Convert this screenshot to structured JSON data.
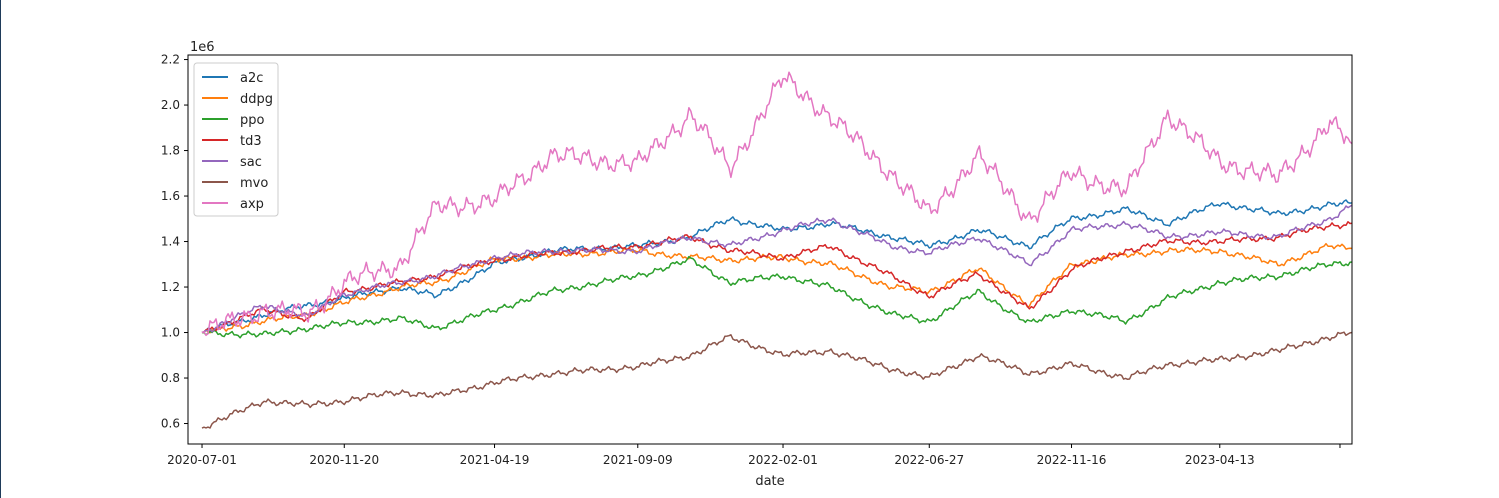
{
  "chart_data": {
    "type": "line",
    "title": "",
    "xlabel": "date",
    "ylabel": "",
    "y_offset_text": "1e6",
    "x_tick_labels": [
      "2020-07-01",
      "2020-11-20",
      "2021-04-19",
      "2021-09-09",
      "2022-02-01",
      "2022-06-27",
      "2022-11-16",
      "2023-04-13",
      ""
    ],
    "x_ticks_days": [
      0,
      142,
      292,
      435,
      580,
      726,
      868,
      1016,
      1136
    ],
    "y_ticks": [
      0.6,
      0.8,
      1.0,
      1.2,
      1.4,
      1.6,
      1.8,
      2.0,
      2.2
    ],
    "y_tick_labels": [
      "0.6",
      "0.8",
      "1.0",
      "1.2",
      "1.4",
      "1.6",
      "1.8",
      "2.0",
      "2.2"
    ],
    "xlim": [
      "2020-06-17",
      "2023-08-23"
    ],
    "ylim": [
      0.51,
      2.22
    ],
    "grid": false,
    "legend_position": "upper left",
    "x_dates": [
      "2020-07-01",
      "2020-09-01",
      "2020-10-15",
      "2020-11-20",
      "2021-01-15",
      "2021-02-20",
      "2021-04-19",
      "2021-06-15",
      "2021-09-09",
      "2021-11-01",
      "2021-12-10",
      "2022-02-01",
      "2022-03-20",
      "2022-05-20",
      "2022-06-27",
      "2022-08-15",
      "2022-10-05",
      "2022-11-16",
      "2023-01-10",
      "2023-02-20",
      "2023-04-13",
      "2023-06-10",
      "2023-08-01",
      "2023-08-23"
    ],
    "series": [
      {
        "name": "a2c",
        "color": "#1f77b4",
        "values": [
          1.0,
          1.08,
          1.12,
          1.15,
          1.2,
          1.16,
          1.3,
          1.36,
          1.38,
          1.42,
          1.5,
          1.45,
          1.48,
          1.42,
          1.38,
          1.45,
          1.38,
          1.5,
          1.54,
          1.48,
          1.57,
          1.52,
          1.56,
          1.57
        ]
      },
      {
        "name": "ddpg",
        "color": "#ff7f0e",
        "values": [
          1.0,
          1.05,
          1.08,
          1.13,
          1.2,
          1.22,
          1.32,
          1.34,
          1.36,
          1.33,
          1.32,
          1.33,
          1.3,
          1.2,
          1.18,
          1.28,
          1.12,
          1.3,
          1.34,
          1.36,
          1.36,
          1.3,
          1.38,
          1.37
        ]
      },
      {
        "name": "ppo",
        "color": "#2ca02c",
        "values": [
          1.0,
          0.99,
          1.02,
          1.04,
          1.06,
          1.02,
          1.1,
          1.18,
          1.25,
          1.32,
          1.22,
          1.25,
          1.2,
          1.08,
          1.05,
          1.18,
          1.04,
          1.1,
          1.05,
          1.15,
          1.22,
          1.25,
          1.3,
          1.31
        ]
      },
      {
        "name": "td3",
        "color": "#d62728",
        "values": [
          1.0,
          1.1,
          1.06,
          1.18,
          1.22,
          1.25,
          1.32,
          1.35,
          1.38,
          1.42,
          1.36,
          1.33,
          1.38,
          1.25,
          1.16,
          1.26,
          1.1,
          1.28,
          1.36,
          1.4,
          1.4,
          1.42,
          1.47,
          1.48
        ]
      },
      {
        "name": "sac",
        "color": "#9467bd",
        "values": [
          1.0,
          1.12,
          1.07,
          1.17,
          1.22,
          1.25,
          1.33,
          1.36,
          1.36,
          1.42,
          1.38,
          1.45,
          1.5,
          1.38,
          1.35,
          1.42,
          1.3,
          1.45,
          1.48,
          1.42,
          1.44,
          1.42,
          1.5,
          1.56
        ]
      },
      {
        "name": "mvo",
        "color": "#8c564b",
        "values": [
          0.58,
          0.7,
          0.68,
          0.7,
          0.74,
          0.72,
          0.78,
          0.82,
          0.85,
          0.9,
          0.98,
          0.9,
          0.92,
          0.84,
          0.8,
          0.9,
          0.82,
          0.86,
          0.8,
          0.86,
          0.88,
          0.92,
          0.98,
          1.0
        ]
      },
      {
        "name": "axp",
        "color": "#e377c2",
        "values": [
          1.0,
          1.1,
          1.08,
          1.22,
          1.3,
          1.55,
          1.58,
          1.78,
          1.74,
          1.96,
          1.72,
          2.12,
          1.95,
          1.7,
          1.52,
          1.78,
          1.5,
          1.7,
          1.62,
          1.96,
          1.75,
          1.68,
          1.92,
          1.83
        ]
      }
    ]
  }
}
